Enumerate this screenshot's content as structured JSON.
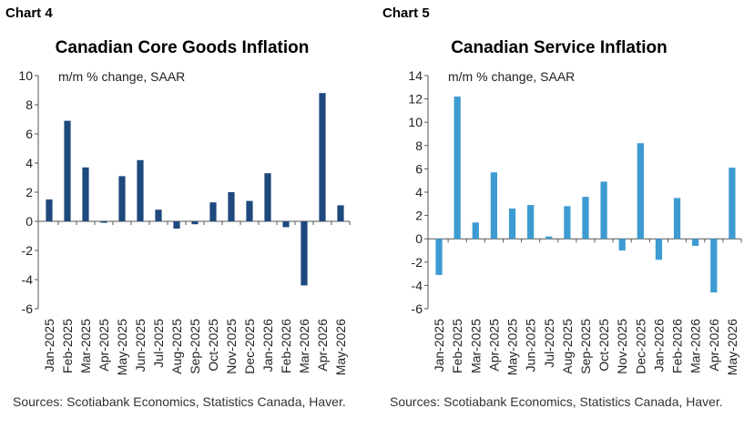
{
  "charts": [
    {
      "label": "Chart 4",
      "title": "Canadian Core Goods Inflation",
      "subtitle": "m/m % change, SAAR",
      "sources": "Sources: Scotiabank Economics, Statistics Canada, Haver.",
      "bar_color": "#1f497d"
    },
    {
      "label": "Chart 5",
      "title": "Canadian Service Inflation",
      "subtitle": "m/m % change, SAAR",
      "sources": "Sources: Scotiabank Economics, Statistics Canada, Haver.",
      "bar_color": "#3d9bd1"
    }
  ],
  "chart_data": [
    {
      "type": "bar",
      "title": "Canadian Core Goods Inflation",
      "subtitle": "m/m % change, SAAR",
      "categories": [
        "Jan-2025",
        "Feb-2025",
        "Mar-2025",
        "Apr-2025",
        "May-2025",
        "Jun-2025",
        "Jul-2025",
        "Aug-2025",
        "Sep-2025",
        "Oct-2025",
        "Nov-2025",
        "Dec-2025",
        "Jan-2026",
        "Feb-2026",
        "Mar-2026",
        "Apr-2026",
        "May-2026"
      ],
      "values": [
        1.5,
        6.9,
        3.7,
        -0.1,
        3.1,
        4.2,
        0.8,
        -0.5,
        -0.2,
        1.3,
        2.0,
        1.4,
        3.3,
        -0.4,
        -4.4,
        8.8,
        1.1
      ],
      "ylim": [
        -6,
        10
      ],
      "yticks": [
        -6,
        -4,
        -2,
        0,
        2,
        4,
        6,
        8,
        10
      ],
      "grid": false,
      "legend": "none"
    },
    {
      "type": "bar",
      "title": "Canadian Service Inflation",
      "subtitle": "m/m % change, SAAR",
      "categories": [
        "Jan-2025",
        "Feb-2025",
        "Mar-2025",
        "Apr-2025",
        "May-2025",
        "Jun-2025",
        "Jul-2025",
        "Aug-2025",
        "Sep-2025",
        "Oct-2025",
        "Nov-2025",
        "Dec-2025",
        "Jan-2026",
        "Feb-2026",
        "Mar-2026",
        "Apr-2026",
        "May-2026"
      ],
      "values": [
        -3.1,
        12.2,
        1.4,
        5.7,
        2.6,
        2.9,
        0.2,
        2.8,
        3.6,
        4.9,
        -1.0,
        8.2,
        -1.8,
        3.5,
        -0.6,
        -4.6,
        6.1
      ],
      "ylim": [
        -6,
        14
      ],
      "yticks": [
        -6,
        -4,
        -2,
        0,
        2,
        4,
        6,
        8,
        10,
        12,
        14
      ],
      "grid": false,
      "legend": "none"
    }
  ]
}
